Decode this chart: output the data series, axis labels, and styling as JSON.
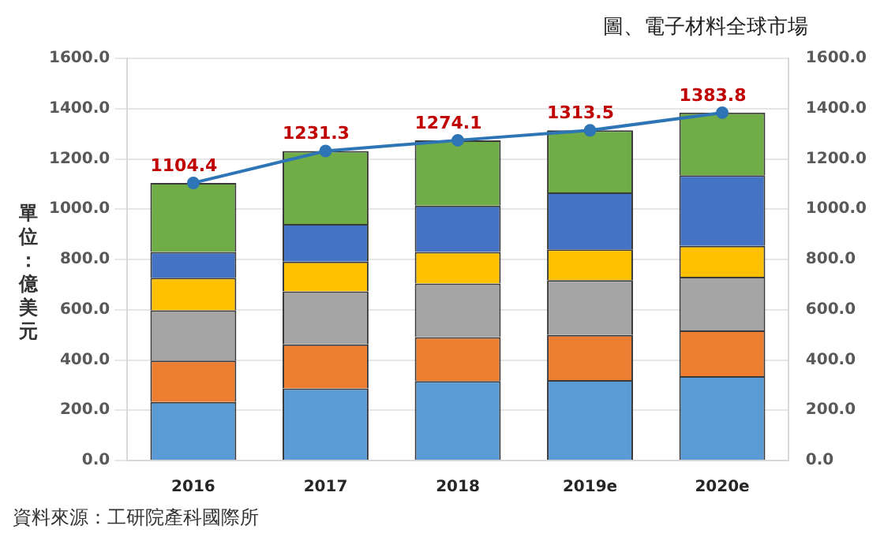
{
  "chart_data": {
    "type": "bar",
    "title": "圖、電子材料全球市場",
    "ylabel": "單位：億美元",
    "annotations": [
      "資料來源：工研院產科國際所"
    ],
    "categories": [
      "2016",
      "2017",
      "2018",
      "2019e",
      "2020e"
    ],
    "stacked": true,
    "grid": "y",
    "legend": false,
    "marker": "circle",
    "line_style": "solid",
    "ylim": [
      0,
      1600
    ],
    "yticks": [
      {
        "value": 0,
        "label": "0.0"
      },
      {
        "value": 200,
        "label": "200.0"
      },
      {
        "value": 400,
        "label": "400.0"
      },
      {
        "value": 600,
        "label": "600.0"
      },
      {
        "value": 800,
        "label": "800.0"
      },
      {
        "value": 1000,
        "label": "1000.0"
      },
      {
        "value": 1200,
        "label": "1200.0"
      },
      {
        "value": 1400,
        "label": "1400.0"
      },
      {
        "value": 1600,
        "label": "1600.0"
      }
    ],
    "y2lim": [
      0,
      1600
    ],
    "y2ticks": [
      {
        "value": 0,
        "label": "0.0"
      },
      {
        "value": 200,
        "label": "200.0"
      },
      {
        "value": 400,
        "label": "400.0"
      },
      {
        "value": 600,
        "label": "600.0"
      },
      {
        "value": 800,
        "label": "800.0"
      },
      {
        "value": 1000,
        "label": "1000.0"
      },
      {
        "value": 1200,
        "label": "1200.0"
      },
      {
        "value": 1400,
        "label": "1400.0"
      },
      {
        "value": 1600,
        "label": "1600.0"
      }
    ],
    "series": [
      {
        "color": "#5b9bd5",
        "values": [
          233,
          287,
          316,
          320,
          336
        ]
      },
      {
        "color": "#ed7d31",
        "values": [
          165,
          175,
          175,
          180,
          182
        ]
      },
      {
        "color": "#a5a5a5",
        "values": [
          200,
          211,
          213,
          218,
          213
        ]
      },
      {
        "color": "#ffc000",
        "values": [
          129,
          118,
          126,
          122,
          123
        ]
      },
      {
        "color": "#4472c4",
        "values": [
          103,
          150,
          184,
          227,
          281
        ]
      },
      {
        "color": "#70ad47",
        "values": [
          274,
          290,
          260,
          247,
          249
        ]
      },
      {
        "type": "line",
        "axis": "y2",
        "color": "#2e75b6",
        "values": [
          1104.4,
          1231.3,
          1274.1,
          1313.5,
          1383.8
        ],
        "value_labels": [
          "1104.4",
          "1231.3",
          "1274.1",
          "1313.5",
          "1383.8"
        ]
      }
    ]
  }
}
